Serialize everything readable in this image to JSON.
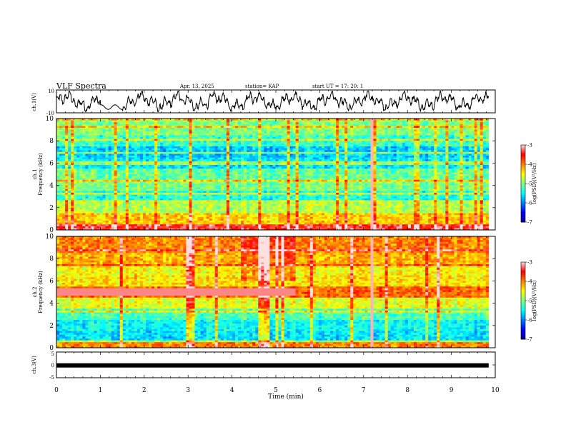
{
  "header": {
    "title": "VLF Spectra",
    "date": "Apr. 13, 2025",
    "station": "station= KAP",
    "start": "start  UT  =    17: 20: 1"
  },
  "chart_data": [
    {
      "type": "line",
      "name": "ch1-waveform",
      "ylabel": "ch.1(V)",
      "ylim": [
        -10,
        10
      ],
      "yticks": [
        "10",
        "-10"
      ],
      "xlim": [
        0,
        10
      ],
      "note_values": "dense waveform trace, amplitude roughly between -8 and 8"
    },
    {
      "type": "heatmap",
      "name": "ch1-spectrogram",
      "ylabel_top": "ch.1",
      "ylabel": "Frequency  (kHz)",
      "ylim": [
        0,
        10
      ],
      "yticks": [
        "0",
        "2",
        "4",
        "6",
        "8",
        "10"
      ],
      "xlim": [
        0,
        10
      ],
      "colorbar": {
        "label": "log(PSD)(V²/Hz)",
        "range": [
          -7,
          -3
        ],
        "ticks": [
          "-3",
          "-4",
          "-5",
          "-6",
          "-7"
        ]
      },
      "bands": [
        {
          "f": [
            0,
            0.5
          ],
          "v": -3.4
        },
        {
          "f": [
            0.5,
            1.5
          ],
          "v": -4.3
        },
        {
          "f": [
            1.5,
            2.5
          ],
          "v": -4.8
        },
        {
          "f": [
            2.5,
            3.5
          ],
          "v": -5.4
        },
        {
          "f": [
            3.5,
            4.5
          ],
          "v": -5.0
        },
        {
          "f": [
            4.5,
            5.5
          ],
          "v": -5.1
        },
        {
          "f": [
            5.5,
            6.5
          ],
          "v": -5.6
        },
        {
          "f": [
            6.5,
            7.5
          ],
          "v": -5.7
        },
        {
          "f": [
            7.5,
            8.5
          ],
          "v": -5.3
        },
        {
          "f": [
            8.5,
            10
          ],
          "v": -5.0
        }
      ]
    },
    {
      "type": "heatmap",
      "name": "ch2-spectrogram",
      "ylabel_top": "ch.2",
      "ylabel": "Frequency  (kHz)",
      "ylim": [
        0,
        10
      ],
      "yticks": [
        "0",
        "2",
        "4",
        "6",
        "8",
        "10"
      ],
      "xlim": [
        0,
        10
      ],
      "colorbar": {
        "label": "log(PSD)(V²/Hz)",
        "range": [
          -7,
          -3
        ],
        "ticks": [
          "-3",
          "-4",
          "-5",
          "-6",
          "-7"
        ]
      },
      "bands": [
        {
          "f": [
            0,
            0.5
          ],
          "v": -4.0
        },
        {
          "f": [
            0.5,
            1.5
          ],
          "v": -5.6
        },
        {
          "f": [
            1.5,
            2.5
          ],
          "v": -5.5
        },
        {
          "f": [
            2.5,
            3.5
          ],
          "v": -5.2
        },
        {
          "f": [
            3.5,
            4.5
          ],
          "v": -4.6
        },
        {
          "f": [
            4.5,
            5.5
          ],
          "v": -3.9
        },
        {
          "f": [
            5.5,
            6.5
          ],
          "v": -4.4
        },
        {
          "f": [
            6.5,
            7.5
          ],
          "v": -4.5
        },
        {
          "f": [
            7.5,
            8.5
          ],
          "v": -4.2
        },
        {
          "f": [
            8.5,
            10
          ],
          "v": -4.0
        }
      ]
    },
    {
      "type": "line",
      "name": "ch3-waveform",
      "ylabel": "ch.3(V)",
      "ylim": [
        -5,
        5
      ],
      "yticks": [
        "5",
        "0",
        "-5"
      ],
      "xlim": [
        0,
        10
      ],
      "xlabel": "Time  (min)",
      "xticks": [
        "0",
        "1",
        "2",
        "3",
        "4",
        "5",
        "6",
        "7",
        "8",
        "9",
        "10"
      ],
      "level": -0.2
    }
  ],
  "colors": {
    "jet": [
      "#00008f",
      "#0000ff",
      "#0080ff",
      "#00ffff",
      "#80ff80",
      "#ffff00",
      "#ff8000",
      "#ff0000",
      "#ffe0e0"
    ]
  }
}
